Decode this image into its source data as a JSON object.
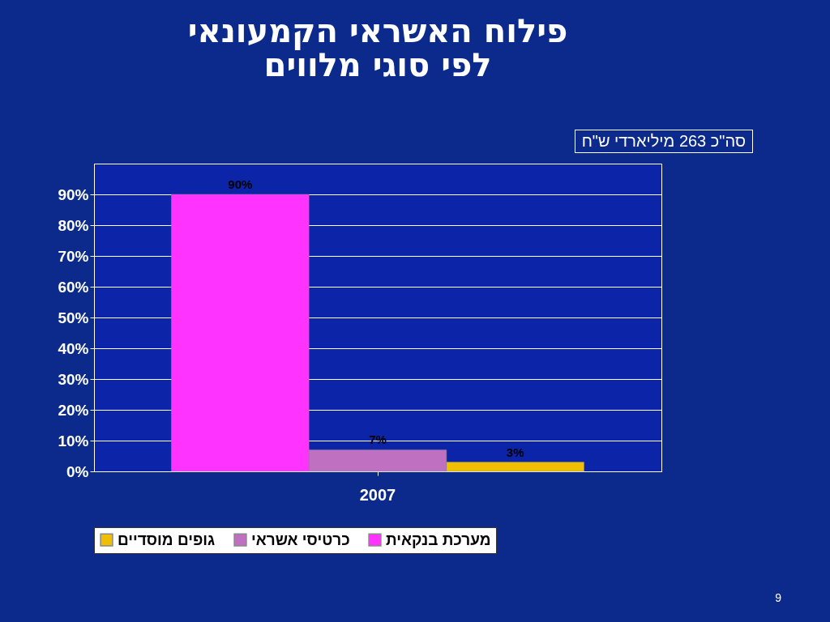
{
  "chart_data": {
    "type": "bar",
    "title": "פילוח האשראי הקמעונאי\nלפי סוגי מלווים",
    "categories": [
      "2007"
    ],
    "series": [
      {
        "name": "מערכת בנקאית",
        "color": "#ff33ff",
        "values": [
          90
        ],
        "value_labels": [
          "90%"
        ]
      },
      {
        "name": "כרטיסי אשראי",
        "color": "#c070c0",
        "values": [
          7
        ],
        "value_labels": [
          "7%"
        ]
      },
      {
        "name": "גופים מוסדיים",
        "color": "#f0c000",
        "values": [
          3
        ],
        "value_labels": [
          "3%"
        ]
      }
    ],
    "ylim": [
      0,
      100
    ],
    "yticks": [
      {
        "value": 0,
        "label": "0%"
      },
      {
        "value": 10,
        "label": "10%"
      },
      {
        "value": 20,
        "label": "20%"
      },
      {
        "value": 30,
        "label": "30%"
      },
      {
        "value": 40,
        "label": "40%"
      },
      {
        "value": 50,
        "label": "50%"
      },
      {
        "value": 60,
        "label": "60%"
      },
      {
        "value": 70,
        "label": "70%"
      },
      {
        "value": 80,
        "label": "80%"
      },
      {
        "value": 90,
        "label": "90%"
      }
    ],
    "grid": true,
    "legend": "bottom",
    "annotations": [
      "סה\"כ 263 מיליארדי ש\"ח",
      "9"
    ]
  }
}
